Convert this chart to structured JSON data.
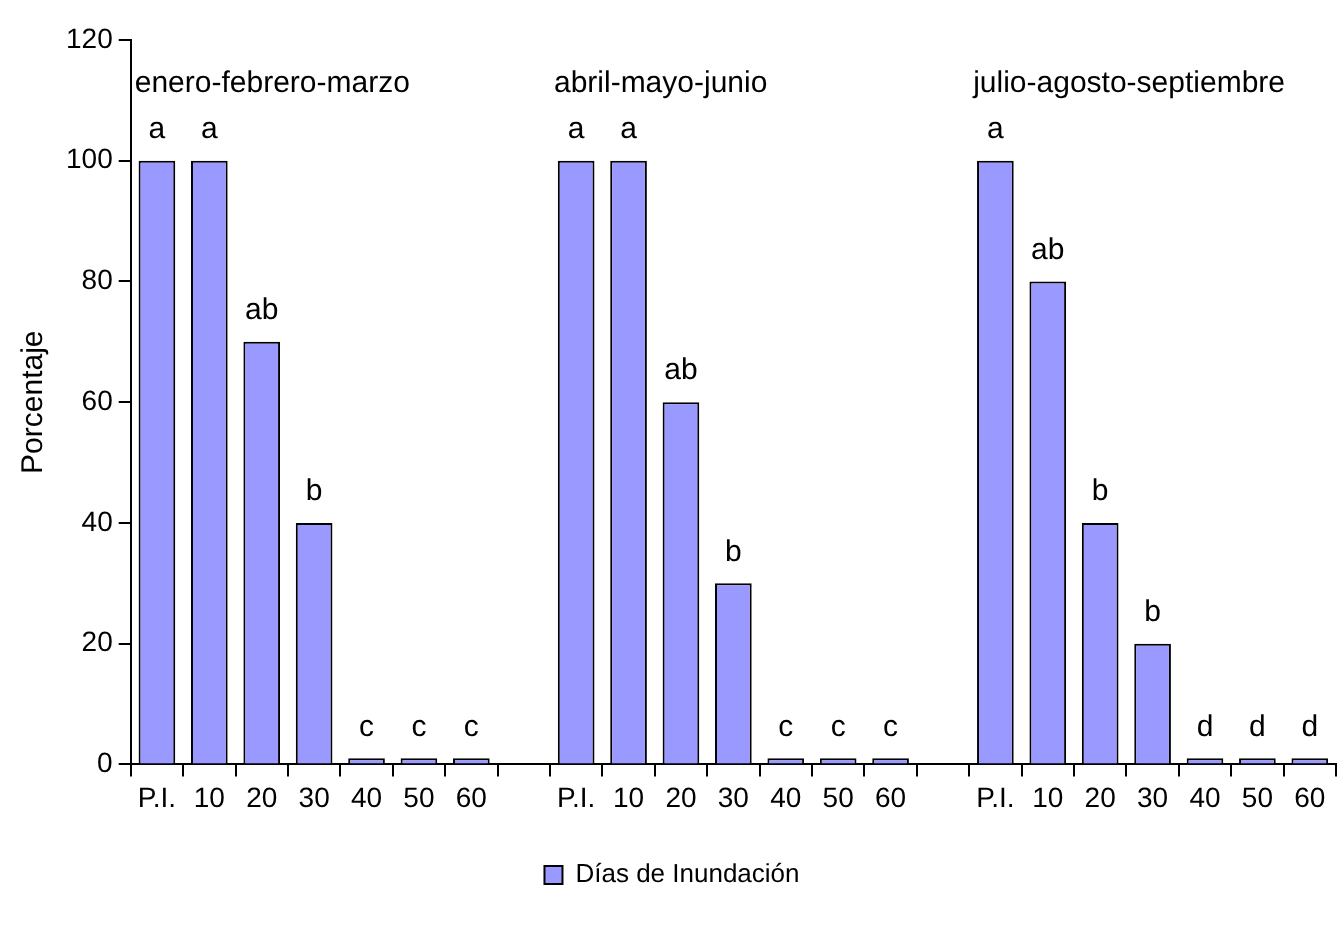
{
  "chart_data": {
    "type": "bar",
    "ylabel": "Porcentaje",
    "categories": [
      "P.I.",
      "10",
      "20",
      "30",
      "40",
      "50",
      "60",
      null,
      "P.I.",
      "10",
      "20",
      "30",
      "40",
      "50",
      "60",
      null,
      "P.I.",
      "10",
      "20",
      "30",
      "40",
      "50",
      "60"
    ],
    "series": [
      {
        "name": "Días de Inundación",
        "color": "#9999ff",
        "values": [
          100,
          100,
          70,
          40,
          1,
          1,
          1,
          null,
          100,
          100,
          60,
          30,
          1,
          1,
          1,
          null,
          100,
          80,
          40,
          20,
          1,
          1,
          1
        ],
        "value_labels": [
          "a",
          "a",
          "ab",
          "b",
          "c",
          "c",
          "c",
          null,
          "a",
          "a",
          "ab",
          "b",
          "c",
          "c",
          "c",
          null,
          "a",
          "ab",
          "b",
          "b",
          "d",
          "d",
          "d"
        ]
      }
    ],
    "annotations": [
      "enero-febrero-marzo",
      "abril-mayo-junio",
      "julio-agosto-septiembre"
    ],
    "ylim": [
      0,
      120
    ],
    "yticks": [
      0,
      20,
      40,
      60,
      80,
      100,
      120
    ],
    "grid": false,
    "legend": "bottom"
  }
}
